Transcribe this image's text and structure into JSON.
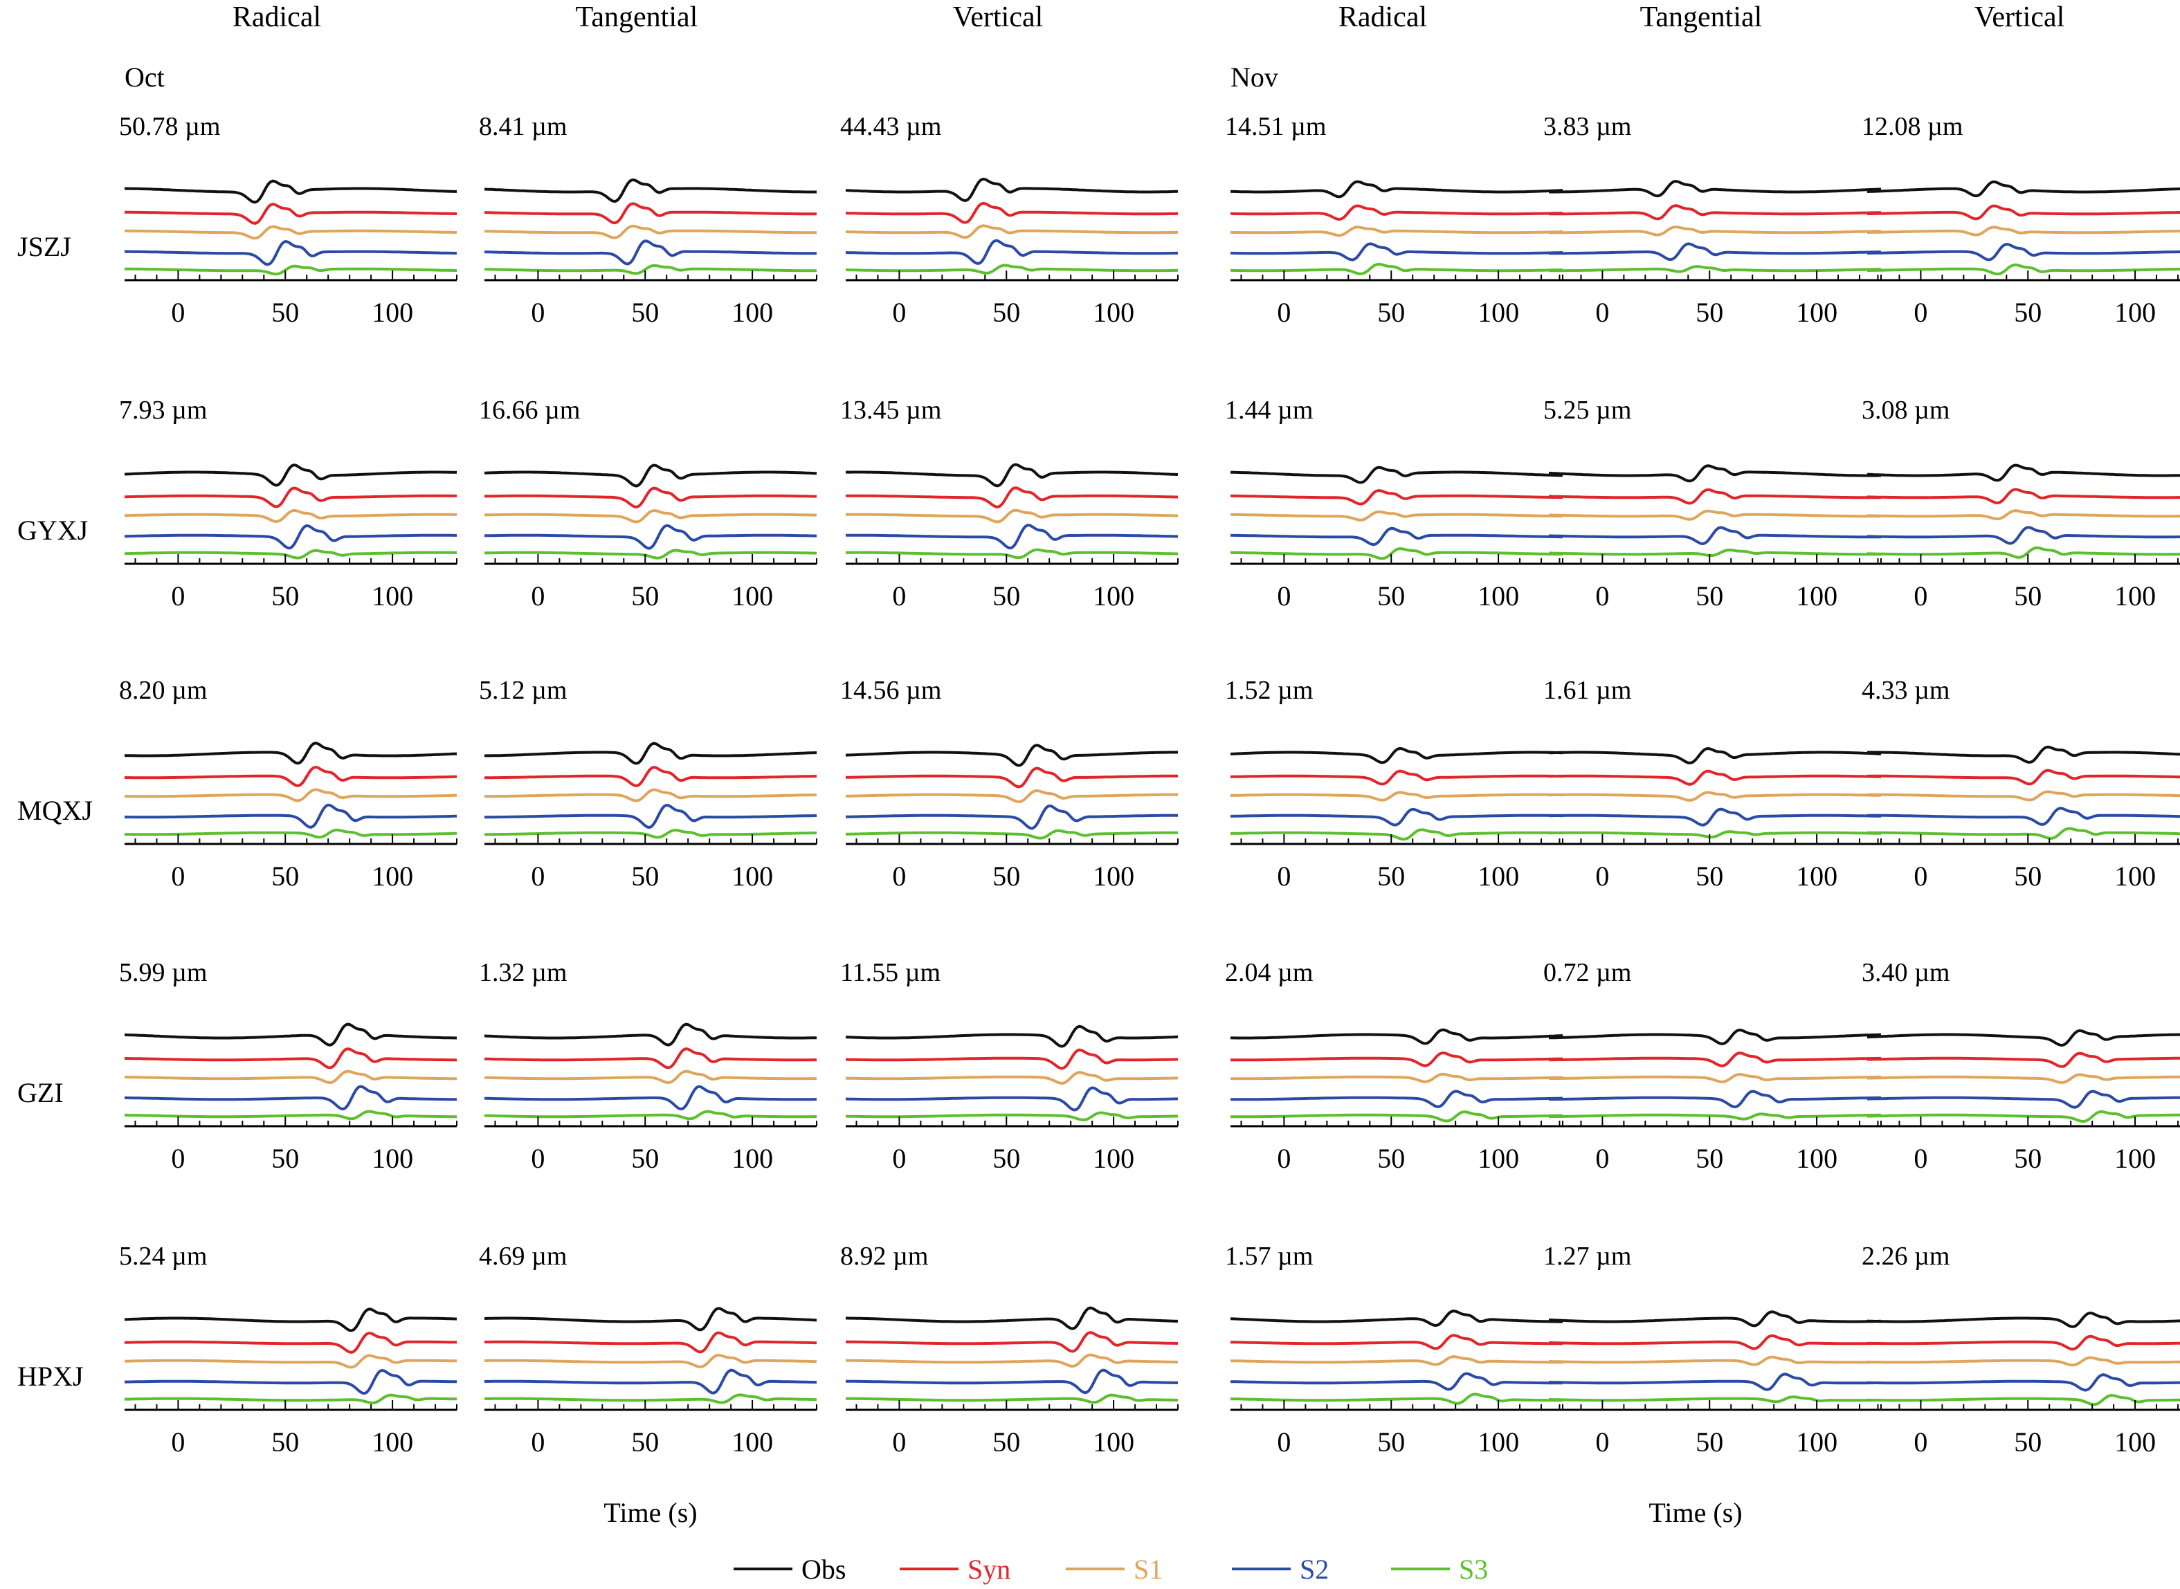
{
  "colors": {
    "Obs": "#111111",
    "Syn": "#e0262b",
    "S1": "#e0a55c",
    "S2": "#2a4aa6",
    "S3": "#5cbf2e",
    "axis": "#000000"
  },
  "legend": [
    {
      "key": "Obs",
      "label": "Obs"
    },
    {
      "key": "Syn",
      "label": "Syn"
    },
    {
      "key": "S1",
      "label": "S1"
    },
    {
      "key": "S2",
      "label": "S2"
    },
    {
      "key": "S3",
      "label": "S3"
    }
  ],
  "groups": [
    {
      "label": "Oct",
      "xlabel": "Time (s)"
    },
    {
      "label": "Nov",
      "xlabel": "Time (s)"
    }
  ],
  "components": [
    "Radical",
    "Tangential",
    "Vertical",
    "Radical",
    "Tangential",
    "Vertical"
  ],
  "stations": [
    "JSZJ",
    "GYXJ",
    "MQXJ",
    "GZI",
    "HPXJ"
  ],
  "xticks": [
    "0",
    "50",
    "100"
  ],
  "amplitudes": [
    [
      "50.78 µm",
      "8.41 µm",
      "44.43 µm",
      "14.51 µm",
      "3.83 µm",
      "12.08 µm"
    ],
    [
      "7.93 µm",
      "16.66 µm",
      "13.45 µm",
      "1.44 µm",
      "5.25 µm",
      "3.08 µm"
    ],
    [
      "8.20 µm",
      "5.12 µm",
      "14.56 µm",
      "1.52 µm",
      "1.61 µm",
      "4.33 µm"
    ],
    [
      "5.99 µm",
      "1.32 µm",
      "11.55 µm",
      "2.04 µm",
      "0.72 µm",
      "3.40 µm"
    ],
    [
      "5.24 µm",
      "4.69 µm",
      "8.92 µm",
      "1.57 µm",
      "1.27 µm",
      "2.26 µm"
    ]
  ],
  "chart_data": {
    "type": "line",
    "description_units": "waveform displacement traces, x = time in seconds",
    "x_unit": "s",
    "xlim": [
      -25,
      130
    ],
    "series_names": [
      "Obs",
      "Syn",
      "S1",
      "S2",
      "S3"
    ],
    "arrival_times_s": [
      [
        40,
        40,
        35,
        30,
        30,
        30
      ],
      [
        50,
        50,
        50,
        40,
        45,
        40
      ],
      [
        60,
        50,
        60,
        50,
        45,
        55
      ],
      [
        75,
        65,
        80,
        70,
        60,
        70
      ],
      [
        85,
        80,
        85,
        75,
        75,
        75
      ]
    ],
    "legend_position": "bottom-center"
  }
}
